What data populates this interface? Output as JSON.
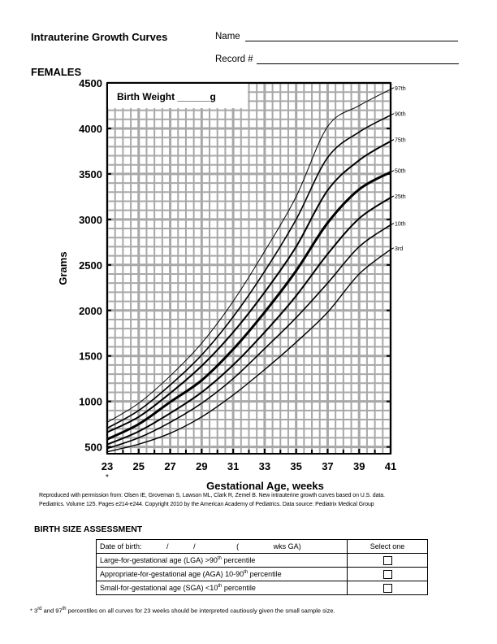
{
  "header": {
    "title": "Intrauterine Growth Curves",
    "name_label": "Name",
    "record_label": "Record #",
    "section": "FEMALES"
  },
  "chart_data": {
    "type": "line",
    "xlabel": "Gestational Age, weeks",
    "ylabel": "Grams",
    "x_ticks": [
      "23",
      "25",
      "27",
      "29",
      "31",
      "33",
      "35",
      "37",
      "39",
      "41"
    ],
    "x_tick_note": "*",
    "y_ticks": [
      "500",
      "1000",
      "1500",
      "2000",
      "2500",
      "3000",
      "3500",
      "4000",
      "4500"
    ],
    "xlim": [
      23,
      41
    ],
    "ylim": [
      425,
      4500
    ],
    "grid": true,
    "grid_color": "#a8a8a8",
    "box_label": "Birth Weight ______g",
    "x": [
      23,
      25,
      27,
      29,
      31,
      33,
      35,
      37,
      39,
      41
    ],
    "series": [
      {
        "name": "97th",
        "values": [
          770,
          980,
          1280,
          1640,
          2100,
          2650,
          3250,
          4020,
          4250,
          4430
        ]
      },
      {
        "name": "90th",
        "values": [
          706,
          900,
          1180,
          1510,
          1930,
          2430,
          3000,
          3680,
          3960,
          4145
        ]
      },
      {
        "name": "75th",
        "values": [
          661,
          830,
          1090,
          1390,
          1760,
          2200,
          2700,
          3320,
          3650,
          3860
        ]
      },
      {
        "name": "50th",
        "values": [
          584,
          750,
          993,
          1232,
          1573,
          1981,
          2436,
          2962,
          3330,
          3520
        ]
      },
      {
        "name": "25th",
        "values": [
          527,
          670,
          870,
          1100,
          1400,
          1760,
          2160,
          2620,
          3010,
          3240
        ]
      },
      {
        "name": "10th",
        "values": [
          482,
          600,
          770,
          980,
          1250,
          1580,
          1920,
          2300,
          2700,
          2940
        ]
      },
      {
        "name": "3rd",
        "values": [
          446,
          530,
          650,
          830,
          1070,
          1350,
          1650,
          1980,
          2400,
          2670
        ]
      }
    ]
  },
  "credit": {
    "line1": "Reproduced with permission from: Olsen IE, Groveman S, Lawson ML, Clark R, Zemel B. New intrauterine growth curves based on U.S. data.",
    "line2": "Pediatrics. Volume 125. Pages e214-e244. Copyright 2010 by the American Academy of Pediatrics.  Data source: Pediatrix Medical Group"
  },
  "assessment": {
    "title": "BIRTH SIZE ASSESSMENT",
    "dob_label": "Date of birth:",
    "dob_sep": "/",
    "ga_open": "(",
    "ga_label": "wks GA)",
    "select_header": "Select one",
    "rows": [
      {
        "pre": "Large-for-gestational age (LGA)  >90",
        "sup": "th",
        "post": " percentile"
      },
      {
        "pre": "Appropriate-for-gestational age (AGA)  10-90",
        "sup": "th",
        "post": " percentile"
      },
      {
        "pre": "Small-for-gestational age (SGA)  <10",
        "sup": "th",
        "post": " percentile"
      }
    ]
  },
  "footnote": {
    "star": "* 3",
    "sup1": "rd",
    "mid": " and 97",
    "sup2": "th",
    "text": " percentiles on all curves for 23 weeks should be interpreted cautiously given the small sample size."
  }
}
